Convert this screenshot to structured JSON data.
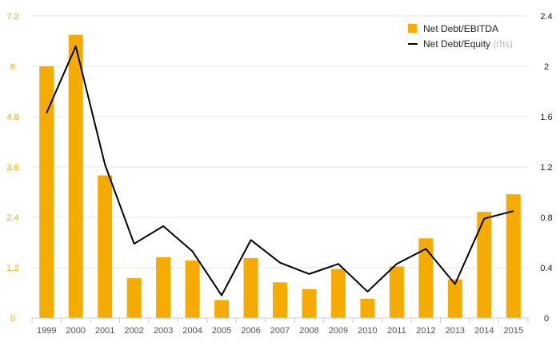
{
  "colors": {
    "bar": "#f5ab00",
    "line": "#000000",
    "grid": "#e6e6e6",
    "axis": "#cccccc"
  },
  "chart_data": {
    "type": "bar",
    "categories": [
      "1999",
      "2000",
      "2001",
      "2002",
      "2003",
      "2004",
      "2005",
      "2006",
      "2007",
      "2008",
      "2009",
      "2010",
      "2011",
      "2012",
      "2013",
      "2014",
      "2015"
    ],
    "series": [
      {
        "name": "Net Debt/EBITDA",
        "type": "bar",
        "axis": "left",
        "values": [
          6.0,
          6.75,
          3.4,
          0.95,
          1.45,
          1.37,
          0.43,
          1.43,
          0.85,
          0.69,
          1.17,
          0.46,
          1.23,
          1.9,
          0.92,
          2.53,
          2.95
        ]
      },
      {
        "name": "Net Debt/Equity",
        "name_suffix": "(rhs)",
        "type": "line",
        "axis": "right",
        "values": [
          1.63,
          2.16,
          1.22,
          0.59,
          0.73,
          0.53,
          0.18,
          0.62,
          0.44,
          0.35,
          0.43,
          0.21,
          0.43,
          0.55,
          0.27,
          0.79,
          0.85
        ]
      }
    ],
    "left_axis": {
      "min": 0,
      "max": 7.2,
      "ticks": [
        "0",
        "1.2",
        "2.4",
        "3.6",
        "4.8",
        "6",
        "7.2"
      ]
    },
    "right_axis": {
      "min": 0,
      "max": 2.4,
      "ticks": [
        "0",
        "0.4",
        "0.8",
        "1.2",
        "1.6",
        "2",
        "2.4"
      ]
    },
    "grid": true,
    "legend_position": "top-right"
  }
}
